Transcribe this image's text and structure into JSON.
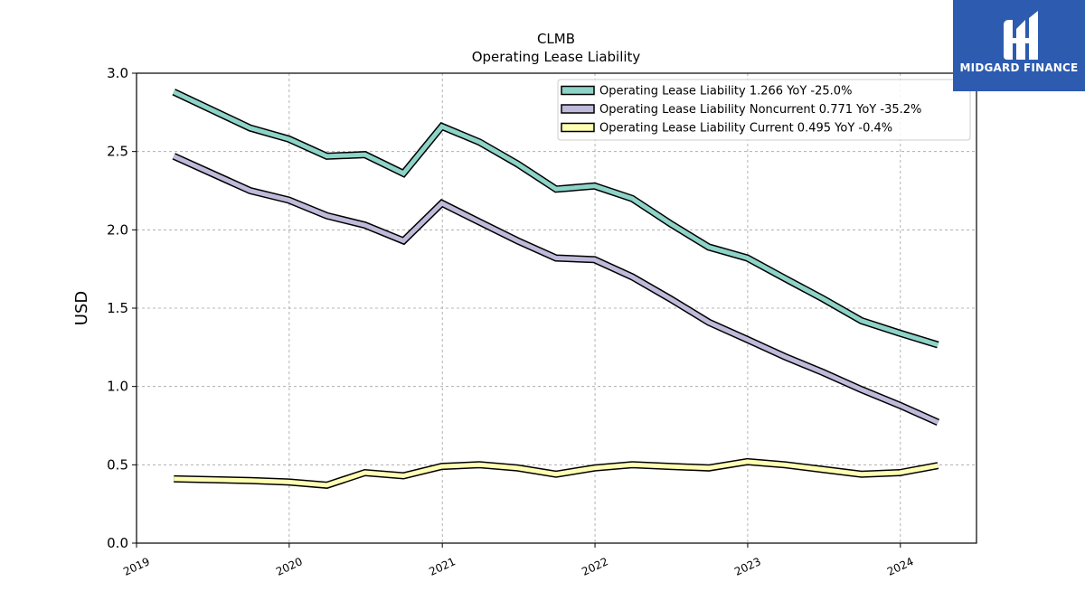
{
  "chart_data": {
    "type": "line",
    "title": "CLMB",
    "subtitle": "Operating Lease Liability",
    "ylabel": "USD",
    "xlabel": "",
    "ylim": [
      0.0,
      3.0
    ],
    "xlim": [
      "2019-01-01",
      "2024-07-01"
    ],
    "yticks": [
      "0.0",
      "0.5",
      "1.0",
      "1.5",
      "2.0",
      "2.5",
      "3.0"
    ],
    "xticks": [
      "2019",
      "2020",
      "2021",
      "2022",
      "2023",
      "2024"
    ],
    "grid": true,
    "legend_position": "top-right",
    "x": [
      "2019-03-31",
      "2019-09-30",
      "2019-12-31",
      "2020-03-31",
      "2020-06-30",
      "2020-09-30",
      "2020-12-31",
      "2021-03-31",
      "2021-06-30",
      "2021-09-30",
      "2021-12-31",
      "2022-03-31",
      "2022-06-30",
      "2022-09-30",
      "2022-12-31",
      "2023-03-31",
      "2023-06-30",
      "2023-09-30",
      "2023-12-31",
      "2024-03-31"
    ],
    "series": [
      {
        "name": "Operating Lease Liability",
        "legend": "Operating Lease Liability  1.266 YoY -25.0%",
        "color": "#8dd3c7",
        "values": [
          2.88,
          2.65,
          2.58,
          2.47,
          2.48,
          2.36,
          2.66,
          2.56,
          2.42,
          2.26,
          2.28,
          2.2,
          2.04,
          1.89,
          1.82,
          1.69,
          1.56,
          1.42,
          1.34,
          1.266
        ]
      },
      {
        "name": "Operating Lease Liability Noncurrent",
        "legend": "Operating Lease Liability Noncurrent  0.771 YoY -35.2%",
        "color": "#bebada",
        "values": [
          2.47,
          2.25,
          2.19,
          2.09,
          2.03,
          1.93,
          2.17,
          2.05,
          1.93,
          1.82,
          1.81,
          1.7,
          1.56,
          1.41,
          1.3,
          1.19,
          1.09,
          0.98,
          0.88,
          0.771
        ]
      },
      {
        "name": "Operating Lease Liability Current",
        "legend": "Operating Lease Liability Current  0.495 YoY -0.4%",
        "color": "#ffffb3",
        "values": [
          0.41,
          0.4,
          0.39,
          0.37,
          0.45,
          0.43,
          0.49,
          0.5,
          0.48,
          0.44,
          0.48,
          0.5,
          0.49,
          0.48,
          0.52,
          0.5,
          0.47,
          0.44,
          0.45,
          0.495
        ]
      }
    ]
  },
  "logo": {
    "text": "MIDGARD FINANCE",
    "color": "#2d5bb0"
  }
}
